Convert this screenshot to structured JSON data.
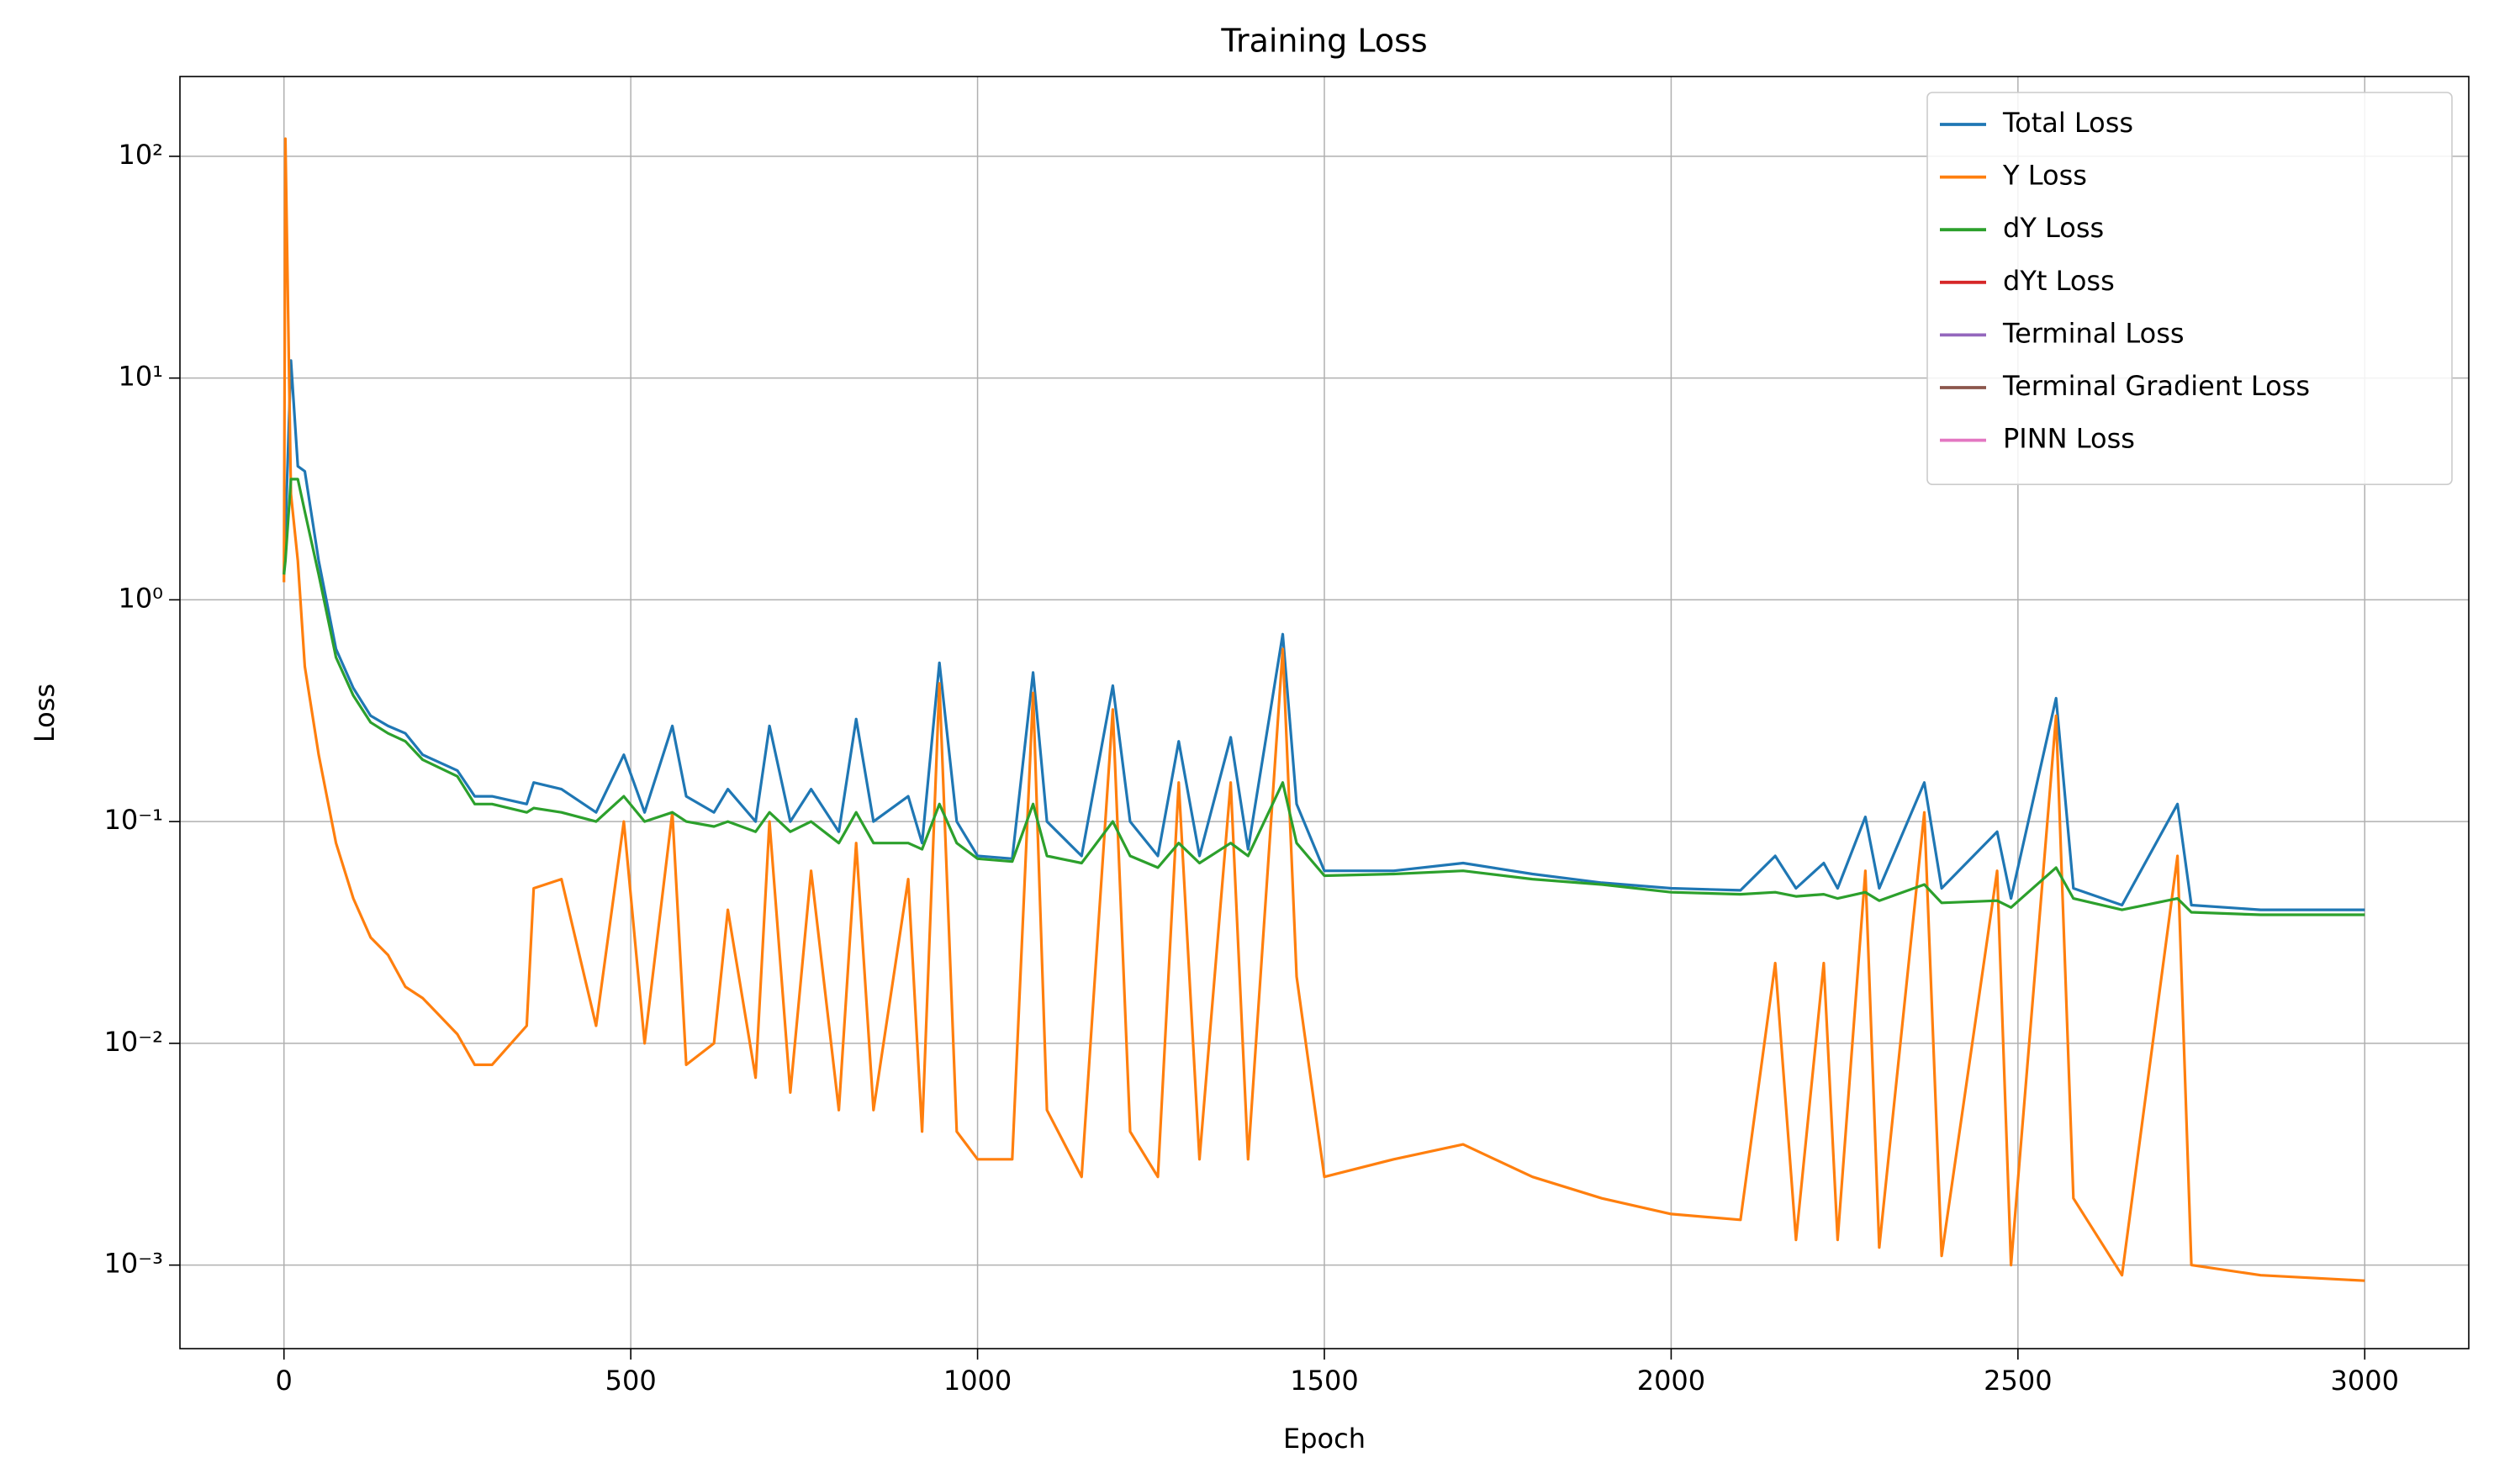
{
  "chart_data": {
    "type": "line",
    "title": "Training Loss",
    "x_label": "Epoch",
    "y_label": "Loss",
    "log_y": true,
    "grid": true,
    "legend": "upper right",
    "xlim": [
      -150,
      3150
    ],
    "xticks": [
      0,
      500,
      1000,
      1500,
      2000,
      2500,
      3000
    ],
    "ylim": [
      0.00042,
      229
    ],
    "yticks": [
      {
        "value": 0.001,
        "label": "10⁻³"
      },
      {
        "value": 0.01,
        "label": "10⁻²"
      },
      {
        "value": 0.1,
        "label": "10⁻¹"
      },
      {
        "value": 1,
        "label": "10⁰"
      },
      {
        "value": 10,
        "label": "10¹"
      },
      {
        "value": 100,
        "label": "10²"
      }
    ],
    "x": [
      0,
      2,
      10,
      20,
      30,
      50,
      75,
      100,
      125,
      150,
      175,
      200,
      250,
      275,
      300,
      350,
      360,
      400,
      450,
      490,
      520,
      560,
      580,
      620,
      640,
      680,
      700,
      730,
      760,
      800,
      825,
      850,
      900,
      920,
      945,
      970,
      1000,
      1050,
      1080,
      1100,
      1150,
      1195,
      1220,
      1260,
      1290,
      1320,
      1365,
      1390,
      1440,
      1460,
      1500,
      1600,
      1700,
      1800,
      1900,
      2000,
      2100,
      2150,
      2180,
      2220,
      2240,
      2280,
      2300,
      2365,
      2390,
      2470,
      2490,
      2555,
      2580,
      2650,
      2730,
      2750,
      2850,
      3000
    ],
    "series": [
      {
        "name": "Total Loss",
        "color": "#1f77b4",
        "values": [
          1.3,
          2,
          12,
          4,
          3.8,
          1.5,
          0.6,
          0.4,
          0.3,
          0.27,
          0.25,
          0.2,
          0.17,
          0.13,
          0.13,
          0.12,
          0.15,
          0.14,
          0.11,
          0.2,
          0.11,
          0.27,
          0.13,
          0.11,
          0.14,
          0.1,
          0.27,
          0.1,
          0.14,
          0.09,
          0.29,
          0.1,
          0.13,
          0.08,
          0.52,
          0.1,
          0.07,
          0.068,
          0.47,
          0.1,
          0.07,
          0.41,
          0.1,
          0.07,
          0.23,
          0.07,
          0.24,
          0.075,
          0.7,
          0.12,
          0.06,
          0.06,
          0.065,
          0.058,
          0.053,
          0.05,
          0.049,
          0.07,
          0.05,
          0.065,
          0.05,
          0.105,
          0.05,
          0.15,
          0.05,
          0.09,
          0.045,
          0.36,
          0.05,
          0.042,
          0.12,
          0.042,
          0.04,
          0.04
        ]
      },
      {
        "name": "Y Loss",
        "color": "#ff7f0e",
        "values": [
          1.2,
          120,
          3,
          1.5,
          0.5,
          0.2,
          0.08,
          0.045,
          0.03,
          0.025,
          0.018,
          0.016,
          0.011,
          0.008,
          0.008,
          0.012,
          0.05,
          0.055,
          0.012,
          0.1,
          0.01,
          0.11,
          0.008,
          0.01,
          0.04,
          0.007,
          0.1,
          0.006,
          0.06,
          0.005,
          0.08,
          0.005,
          0.055,
          0.004,
          0.42,
          0.004,
          0.003,
          0.003,
          0.38,
          0.005,
          0.0025,
          0.32,
          0.004,
          0.0025,
          0.15,
          0.003,
          0.15,
          0.003,
          0.6,
          0.02,
          0.0025,
          0.003,
          0.0035,
          0.0025,
          0.002,
          0.0017,
          0.0016,
          0.023,
          0.0013,
          0.023,
          0.0013,
          0.06,
          0.0012,
          0.11,
          0.0011,
          0.06,
          0.001,
          0.3,
          0.002,
          0.0009,
          0.07,
          0.001,
          0.0009,
          0.00085
        ]
      },
      {
        "name": "dY Loss",
        "color": "#2ca02c",
        "values": [
          1.3,
          1.5,
          3.5,
          3.5,
          2.5,
          1.3,
          0.55,
          0.37,
          0.28,
          0.25,
          0.23,
          0.19,
          0.16,
          0.12,
          0.12,
          0.11,
          0.115,
          0.11,
          0.1,
          0.13,
          0.1,
          0.11,
          0.1,
          0.095,
          0.1,
          0.09,
          0.11,
          0.09,
          0.1,
          0.08,
          0.11,
          0.08,
          0.08,
          0.075,
          0.12,
          0.08,
          0.068,
          0.066,
          0.12,
          0.07,
          0.065,
          0.1,
          0.07,
          0.062,
          0.08,
          0.065,
          0.08,
          0.07,
          0.15,
          0.08,
          0.057,
          0.058,
          0.06,
          0.055,
          0.052,
          0.048,
          0.047,
          0.048,
          0.046,
          0.047,
          0.045,
          0.048,
          0.044,
          0.052,
          0.043,
          0.044,
          0.041,
          0.062,
          0.045,
          0.04,
          0.045,
          0.039,
          0.038,
          0.038
        ]
      },
      {
        "name": "dYt Loss",
        "color": "#d62728",
        "values": [
          null,
          null,
          null,
          null,
          null,
          null,
          null,
          null,
          null,
          null,
          null,
          null,
          null,
          null,
          null,
          null,
          null,
          null,
          null,
          null,
          null,
          null,
          null,
          null,
          null,
          null,
          null,
          null,
          null,
          null,
          null,
          null,
          null,
          null,
          null,
          null,
          null,
          null,
          null,
          null,
          null,
          null,
          null,
          null,
          null,
          null,
          null,
          null,
          null,
          null,
          null,
          null,
          null,
          null,
          null,
          null,
          null,
          null,
          null,
          null,
          null,
          null,
          null,
          null,
          null,
          null,
          null,
          null,
          null,
          null,
          null,
          null,
          null,
          null
        ]
      },
      {
        "name": "Terminal Loss",
        "color": "#9467bd",
        "values": [
          null,
          null,
          null,
          null,
          null,
          null,
          null,
          null,
          null,
          null,
          null,
          null,
          null,
          null,
          null,
          null,
          null,
          null,
          null,
          null,
          null,
          null,
          null,
          null,
          null,
          null,
          null,
          null,
          null,
          null,
          null,
          null,
          null,
          null,
          null,
          null,
          null,
          null,
          null,
          null,
          null,
          null,
          null,
          null,
          null,
          null,
          null,
          null,
          null,
          null,
          null,
          null,
          null,
          null,
          null,
          null,
          null,
          null,
          null,
          null,
          null,
          null,
          null,
          null,
          null,
          null,
          null,
          null,
          null,
          null,
          null,
          null,
          null,
          null
        ]
      },
      {
        "name": "Terminal Gradient Loss",
        "color": "#8c564b",
        "values": [
          null,
          null,
          null,
          null,
          null,
          null,
          null,
          null,
          null,
          null,
          null,
          null,
          null,
          null,
          null,
          null,
          null,
          null,
          null,
          null,
          null,
          null,
          null,
          null,
          null,
          null,
          null,
          null,
          null,
          null,
          null,
          null,
          null,
          null,
          null,
          null,
          null,
          null,
          null,
          null,
          null,
          null,
          null,
          null,
          null,
          null,
          null,
          null,
          null,
          null,
          null,
          null,
          null,
          null,
          null,
          null,
          null,
          null,
          null,
          null,
          null,
          null,
          null,
          null,
          null,
          null,
          null,
          null,
          null,
          null,
          null,
          null,
          null,
          null
        ]
      },
      {
        "name": "PINN Loss",
        "color": "#e377c2",
        "values": [
          null,
          null,
          null,
          null,
          null,
          null,
          null,
          null,
          null,
          null,
          null,
          null,
          null,
          null,
          null,
          null,
          null,
          null,
          null,
          null,
          null,
          null,
          null,
          null,
          null,
          null,
          null,
          null,
          null,
          null,
          null,
          null,
          null,
          null,
          null,
          null,
          null,
          null,
          null,
          null,
          null,
          null,
          null,
          null,
          null,
          null,
          null,
          null,
          null,
          null,
          null,
          null,
          null,
          null,
          null,
          null,
          null,
          null,
          null,
          null,
          null,
          null,
          null,
          null,
          null,
          null,
          null,
          null,
          null,
          null,
          null,
          null,
          null,
          null
        ]
      }
    ]
  }
}
